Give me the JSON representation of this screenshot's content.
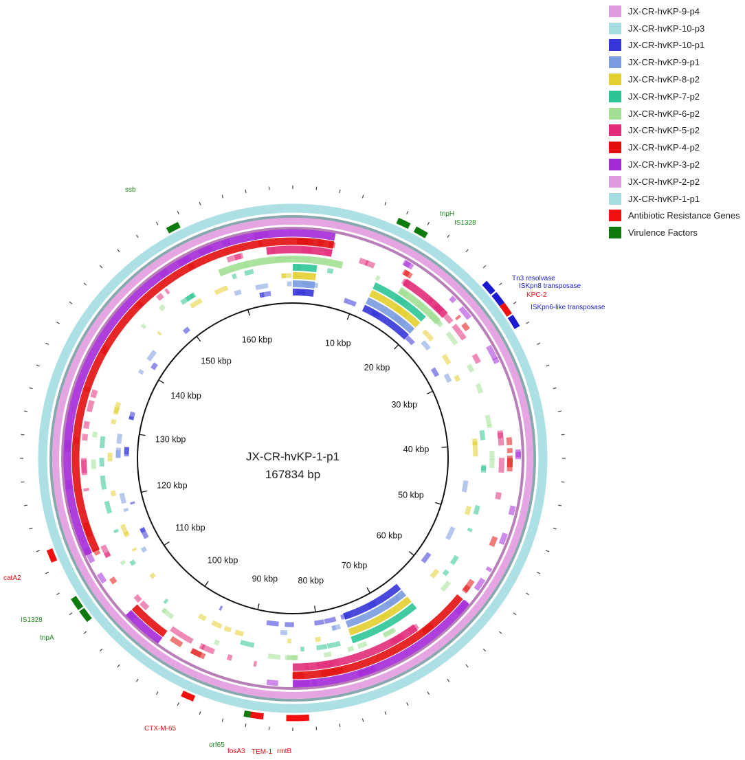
{
  "center": {
    "title": "JX-CR-hvKP-1-p1",
    "length": "167834 bp"
  },
  "total_bp": 167834,
  "legend": [
    {
      "label": "JX-CR-hvKP-9-p4",
      "color": "#e29be0"
    },
    {
      "label": "JX-CR-hvKP-10-p3",
      "color": "#a3dde2"
    },
    {
      "label": "JX-CR-hvKP-10-p1",
      "color": "#3535d8"
    },
    {
      "label": "JX-CR-hvKP-9-p1",
      "color": "#7a9be0"
    },
    {
      "label": "JX-CR-hvKP-8-p2",
      "color": "#e3cf2f"
    },
    {
      "label": "JX-CR-hvKP-7-p2",
      "color": "#2ec496"
    },
    {
      "label": "JX-CR-hvKP-6-p2",
      "color": "#a3e095"
    },
    {
      "label": "JX-CR-hvKP-5-p2",
      "color": "#e22c7a"
    },
    {
      "label": "JX-CR-hvKP-4-p2",
      "color": "#e20f0f"
    },
    {
      "label": "JX-CR-hvKP-3-p2",
      "color": "#a52ad8"
    },
    {
      "label": "JX-CR-hvKP-2-p2",
      "color": "#e29be0"
    },
    {
      "label": "JX-CR-hvKP-1-p1",
      "color": "#a3dde2"
    },
    {
      "label": "Antibiotic Resistance Genes",
      "color": "#f01010"
    },
    {
      "label": "Virulence Factors",
      "color": "#0d7a0d"
    }
  ],
  "ticks": [
    {
      "kbp": 10,
      "label": "10 kbp"
    },
    {
      "kbp": 20,
      "label": "20 kbp"
    },
    {
      "kbp": 30,
      "label": "30 kbp"
    },
    {
      "kbp": 40,
      "label": "40 kbp"
    },
    {
      "kbp": 50,
      "label": "50 kbp"
    },
    {
      "kbp": 60,
      "label": "60 kbp"
    },
    {
      "kbp": 70,
      "label": "70 kbp"
    },
    {
      "kbp": 80,
      "label": "80 kbp"
    },
    {
      "kbp": 90,
      "label": "90 kbp"
    },
    {
      "kbp": 100,
      "label": "100 kbp"
    },
    {
      "kbp": 110,
      "label": "110 kbp"
    },
    {
      "kbp": 120,
      "label": "120 kbp"
    },
    {
      "kbp": 130,
      "label": "130 kbp"
    },
    {
      "kbp": 140,
      "label": "140 kbp"
    },
    {
      "kbp": 150,
      "label": "150 kbp"
    },
    {
      "kbp": 160,
      "label": "160 kbp"
    }
  ],
  "gene_labels": [
    {
      "text": "ssb",
      "color": "#1f8a1f"
    },
    {
      "text": "tnpH",
      "color": "#1f8a1f"
    },
    {
      "text": "IS1328",
      "color": "#1f8a1f"
    },
    {
      "text": "Tn3 resolvase",
      "color": "#1a1ad0"
    },
    {
      "text": "ISKpn8 transposase",
      "color": "#1a1ad0"
    },
    {
      "text": "KPC-2",
      "color": "#e01010"
    },
    {
      "text": "ISKpn6-like transposase",
      "color": "#1a1ad0"
    },
    {
      "text": "catA2",
      "color": "#e01010"
    },
    {
      "text": "IS1328",
      "color": "#1f8a1f"
    },
    {
      "text": "tnpA",
      "color": "#1f8a1f"
    },
    {
      "text": "CTX-M-65",
      "color": "#e01010"
    },
    {
      "text": "orf65",
      "color": "#1f8a1f"
    },
    {
      "text": "fosA3",
      "color": "#e01010"
    },
    {
      "text": "TEM-1",
      "color": "#e01010"
    },
    {
      "text": "rmtB",
      "color": "#e01010"
    }
  ]
}
